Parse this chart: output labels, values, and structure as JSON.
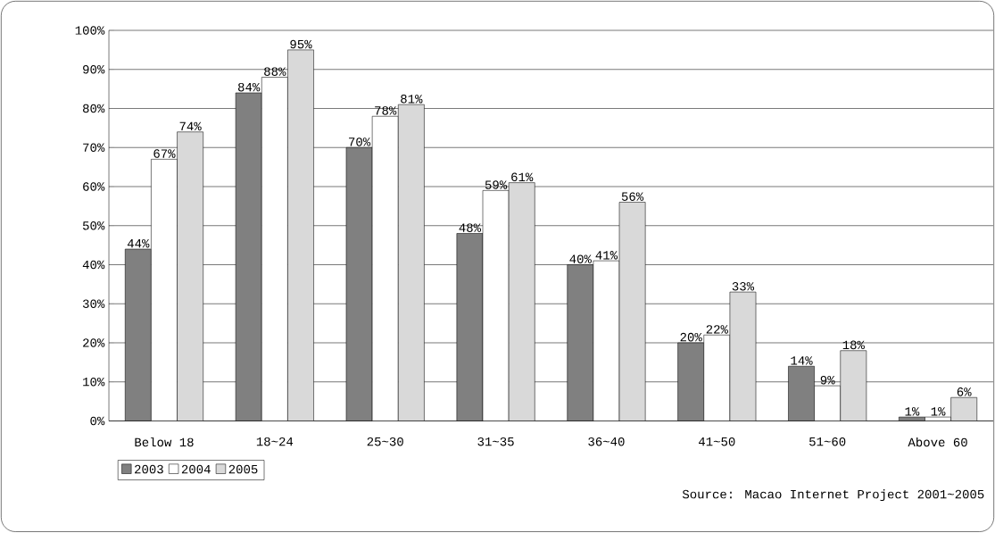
{
  "chart_data": {
    "type": "bar",
    "categories": [
      "Below 18",
      "18~24",
      "25~30",
      "31~35",
      "36~40",
      "41~50",
      "51~60",
      "Above 60"
    ],
    "series": [
      {
        "name": "2003",
        "color": "#808080",
        "values": [
          44,
          84,
          70,
          48,
          40,
          20,
          14,
          1
        ],
        "value_labels": [
          "44%",
          "84%",
          "70%",
          "48%",
          "40%",
          "20%",
          "14%",
          "1%"
        ]
      },
      {
        "name": "2004",
        "color": "#ffffff",
        "values": [
          67,
          88,
          78,
          59,
          41,
          22,
          9,
          1
        ],
        "value_labels": [
          "67%",
          "88%",
          "78%",
          "59%",
          "41%",
          "22%",
          "9%",
          "1%"
        ]
      },
      {
        "name": "2005",
        "color": "#d9d9d9",
        "values": [
          74,
          95,
          81,
          61,
          56,
          33,
          18,
          6
        ],
        "value_labels": [
          "74%",
          "95%",
          "81%",
          "61%",
          "56%",
          "33%",
          "18%",
          "6%"
        ]
      }
    ],
    "ylim": [
      0,
      100
    ],
    "yticks": [
      {
        "value": 0,
        "label": "0%"
      },
      {
        "value": 10,
        "label": "10%"
      },
      {
        "value": 20,
        "label": "20%"
      },
      {
        "value": 30,
        "label": "30%"
      },
      {
        "value": 40,
        "label": "40%"
      },
      {
        "value": 50,
        "label": "50%"
      },
      {
        "value": 60,
        "label": "60%"
      },
      {
        "value": 70,
        "label": "70%"
      },
      {
        "value": 80,
        "label": "80%"
      },
      {
        "value": 90,
        "label": "90%"
      },
      {
        "value": 100,
        "label": "100%"
      }
    ],
    "grid": "y",
    "legend": "bottom left",
    "annotations": [
      "Source: Macao Internet Project 2001~2005"
    ]
  }
}
